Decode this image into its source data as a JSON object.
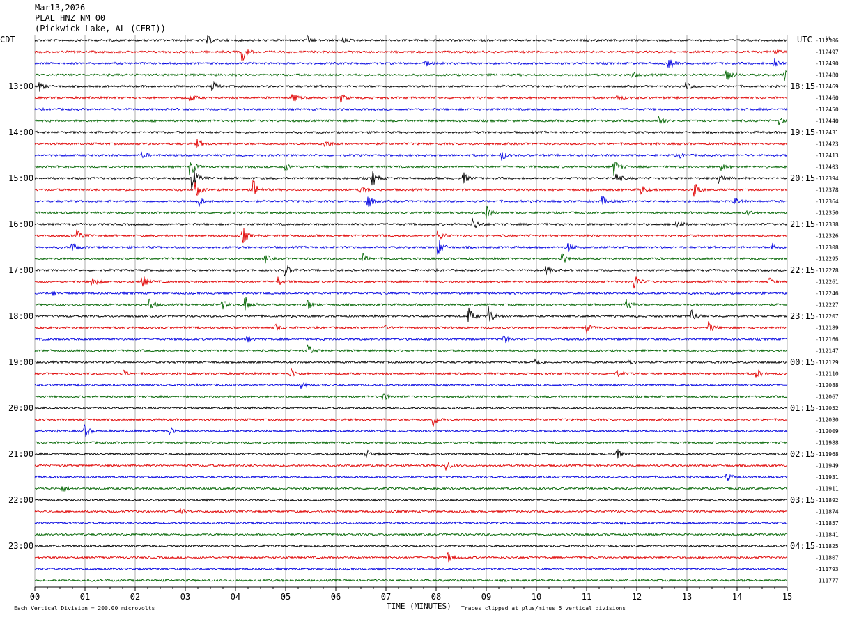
{
  "header": {
    "date": "Mar13,2026",
    "station": "PLAL HNZ NM 00",
    "location": "(Pickwick Lake, AL (CERI))"
  },
  "left_tz": "CDT",
  "right_tz": "UTC",
  "dc_label": "DC",
  "footer": {
    "scale_note": "Each Vertical Division =  200.00 microvolts",
    "xlabel": "TIME (MINUTES)",
    "clip_note": "Traces clipped at plus/minus 5 vertical divisions"
  },
  "colors": [
    "#000000",
    "#e00000",
    "#0000e0",
    "#006400"
  ],
  "chart_data": {
    "type": "line",
    "title": "PLAL HNZ NM 00",
    "xlabel": "TIME (MINUTES)",
    "xlim": [
      0,
      15
    ],
    "x_ticks": [
      "00",
      "01",
      "02",
      "03",
      "04",
      "05",
      "06",
      "07",
      "08",
      "09",
      "10",
      "11",
      "12",
      "13",
      "14",
      "15"
    ],
    "left_time_labels": [
      "13:00",
      "14:00",
      "15:00",
      "16:00",
      "17:00",
      "18:00",
      "19:00",
      "20:00",
      "21:00",
      "22:00",
      "23:00"
    ],
    "right_time_labels": [
      "18:15",
      "19:15",
      "20:15",
      "21:15",
      "22:15",
      "23:15",
      "00:15",
      "01:15",
      "02:15",
      "03:15",
      "04:15"
    ],
    "dc_offsets": [
      -112506,
      -112497,
      -112490,
      -112480,
      -112469,
      -112460,
      -112450,
      -112440,
      -112431,
      -112423,
      -112413,
      -112403,
      -112394,
      -112378,
      -112364,
      -112350,
      -112338,
      -112326,
      -112308,
      -112295,
      -112278,
      -112261,
      -112246,
      -112227,
      -112207,
      -112189,
      -112166,
      -112147,
      -112129,
      -112110,
      -112088,
      -112067,
      -112052,
      -112030,
      -112009,
      -111988,
      -111968,
      -111949,
      -111931,
      -111911,
      -111892,
      -111874,
      -111857,
      -111841,
      -111825,
      -111807,
      -111793,
      -111777
    ],
    "events": [
      {
        "row": 0,
        "x": 3.45,
        "amp": 6
      },
      {
        "row": 0,
        "x": 5.45,
        "amp": 6
      },
      {
        "row": 0,
        "x": 6.15,
        "amp": 4
      },
      {
        "row": 1,
        "x": 4.15,
        "amp": 12
      },
      {
        "row": 1,
        "x": 14.75,
        "amp": 5
      },
      {
        "row": 2,
        "x": 7.8,
        "amp": 4
      },
      {
        "row": 2,
        "x": 12.65,
        "amp": 7
      },
      {
        "row": 2,
        "x": 14.75,
        "amp": 10
      },
      {
        "row": 3,
        "x": 11.9,
        "amp": 5
      },
      {
        "row": 3,
        "x": 13.8,
        "amp": 12
      },
      {
        "row": 3,
        "x": 14.95,
        "amp": 8
      },
      {
        "row": 4,
        "x": 0.1,
        "amp": 7
      },
      {
        "row": 4,
        "x": 3.55,
        "amp": 6
      },
      {
        "row": 4,
        "x": 13.0,
        "amp": 5
      },
      {
        "row": 5,
        "x": 3.1,
        "amp": 5
      },
      {
        "row": 5,
        "x": 5.15,
        "amp": 6
      },
      {
        "row": 5,
        "x": 6.1,
        "amp": 6
      },
      {
        "row": 5,
        "x": 11.6,
        "amp": 5
      },
      {
        "row": 7,
        "x": 12.45,
        "amp": 8
      },
      {
        "row": 7,
        "x": 14.85,
        "amp": 5
      },
      {
        "row": 9,
        "x": 3.25,
        "amp": 6
      },
      {
        "row": 9,
        "x": 5.8,
        "amp": 6
      },
      {
        "row": 10,
        "x": 2.15,
        "amp": 4
      },
      {
        "row": 10,
        "x": 9.3,
        "amp": 8
      },
      {
        "row": 10,
        "x": 12.85,
        "amp": 4
      },
      {
        "row": 11,
        "x": 3.1,
        "amp": 14
      },
      {
        "row": 11,
        "x": 5.0,
        "amp": 5
      },
      {
        "row": 11,
        "x": 11.55,
        "amp": 12
      },
      {
        "row": 11,
        "x": 13.7,
        "amp": 5
      },
      {
        "row": 12,
        "x": 3.15,
        "amp": 18
      },
      {
        "row": 12,
        "x": 6.75,
        "amp": 10
      },
      {
        "row": 12,
        "x": 8.55,
        "amp": 8
      },
      {
        "row": 12,
        "x": 11.6,
        "amp": 7
      },
      {
        "row": 12,
        "x": 13.65,
        "amp": 9
      },
      {
        "row": 13,
        "x": 3.2,
        "amp": 12
      },
      {
        "row": 13,
        "x": 4.35,
        "amp": 16
      },
      {
        "row": 13,
        "x": 6.5,
        "amp": 6
      },
      {
        "row": 13,
        "x": 12.1,
        "amp": 6
      },
      {
        "row": 13,
        "x": 13.15,
        "amp": 12
      },
      {
        "row": 14,
        "x": 3.25,
        "amp": 10
      },
      {
        "row": 14,
        "x": 6.65,
        "amp": 10
      },
      {
        "row": 14,
        "x": 11.3,
        "amp": 8
      },
      {
        "row": 14,
        "x": 13.95,
        "amp": 6
      },
      {
        "row": 15,
        "x": 9.0,
        "amp": 10
      },
      {
        "row": 15,
        "x": 14.2,
        "amp": 4
      },
      {
        "row": 16,
        "x": 8.75,
        "amp": 9
      },
      {
        "row": 16,
        "x": 12.8,
        "amp": 8
      },
      {
        "row": 17,
        "x": 0.85,
        "amp": 8
      },
      {
        "row": 17,
        "x": 4.15,
        "amp": 12
      },
      {
        "row": 17,
        "x": 8.05,
        "amp": 8
      },
      {
        "row": 18,
        "x": 0.75,
        "amp": 6
      },
      {
        "row": 18,
        "x": 8.05,
        "amp": 12
      },
      {
        "row": 18,
        "x": 10.6,
        "amp": 10
      },
      {
        "row": 18,
        "x": 14.7,
        "amp": 7
      },
      {
        "row": 19,
        "x": 4.6,
        "amp": 6
      },
      {
        "row": 19,
        "x": 6.55,
        "amp": 6
      },
      {
        "row": 19,
        "x": 10.5,
        "amp": 10
      },
      {
        "row": 20,
        "x": 5.0,
        "amp": 9
      },
      {
        "row": 20,
        "x": 10.2,
        "amp": 6
      },
      {
        "row": 21,
        "x": 1.15,
        "amp": 8
      },
      {
        "row": 21,
        "x": 2.15,
        "amp": 9
      },
      {
        "row": 21,
        "x": 4.85,
        "amp": 6
      },
      {
        "row": 21,
        "x": 11.95,
        "amp": 14
      },
      {
        "row": 21,
        "x": 14.65,
        "amp": 5
      },
      {
        "row": 22,
        "x": 0.35,
        "amp": 4
      },
      {
        "row": 23,
        "x": 2.3,
        "amp": 10
      },
      {
        "row": 23,
        "x": 3.75,
        "amp": 6
      },
      {
        "row": 23,
        "x": 4.2,
        "amp": 12
      },
      {
        "row": 23,
        "x": 5.45,
        "amp": 8
      },
      {
        "row": 23,
        "x": 11.8,
        "amp": 10
      },
      {
        "row": 24,
        "x": 8.65,
        "amp": 12
      },
      {
        "row": 24,
        "x": 9.05,
        "amp": 14
      },
      {
        "row": 24,
        "x": 13.1,
        "amp": 12
      },
      {
        "row": 25,
        "x": 4.8,
        "amp": 5
      },
      {
        "row": 25,
        "x": 6.95,
        "amp": 6
      },
      {
        "row": 25,
        "x": 11.0,
        "amp": 6
      },
      {
        "row": 25,
        "x": 13.45,
        "amp": 8
      },
      {
        "row": 26,
        "x": 9.35,
        "amp": 6
      },
      {
        "row": 26,
        "x": 4.25,
        "amp": 4
      },
      {
        "row": 27,
        "x": 5.45,
        "amp": 9
      },
      {
        "row": 28,
        "x": 10.0,
        "amp": 5
      },
      {
        "row": 28,
        "x": 11.85,
        "amp": 6
      },
      {
        "row": 29,
        "x": 1.75,
        "amp": 5
      },
      {
        "row": 29,
        "x": 5.1,
        "amp": 8
      },
      {
        "row": 29,
        "x": 11.6,
        "amp": 5
      },
      {
        "row": 29,
        "x": 14.4,
        "amp": 6
      },
      {
        "row": 30,
        "x": 5.3,
        "amp": 4
      },
      {
        "row": 31,
        "x": 6.95,
        "amp": 5
      },
      {
        "row": 33,
        "x": 7.95,
        "amp": 10
      },
      {
        "row": 34,
        "x": 1.0,
        "amp": 8
      },
      {
        "row": 34,
        "x": 2.7,
        "amp": 6
      },
      {
        "row": 36,
        "x": 6.6,
        "amp": 8
      },
      {
        "row": 36,
        "x": 11.6,
        "amp": 8
      },
      {
        "row": 37,
        "x": 8.2,
        "amp": 8
      },
      {
        "row": 38,
        "x": 13.8,
        "amp": 7
      },
      {
        "row": 39,
        "x": 0.55,
        "amp": 4
      },
      {
        "row": 41,
        "x": 2.9,
        "amp": 4
      },
      {
        "row": 45,
        "x": 8.25,
        "amp": 6
      }
    ]
  }
}
